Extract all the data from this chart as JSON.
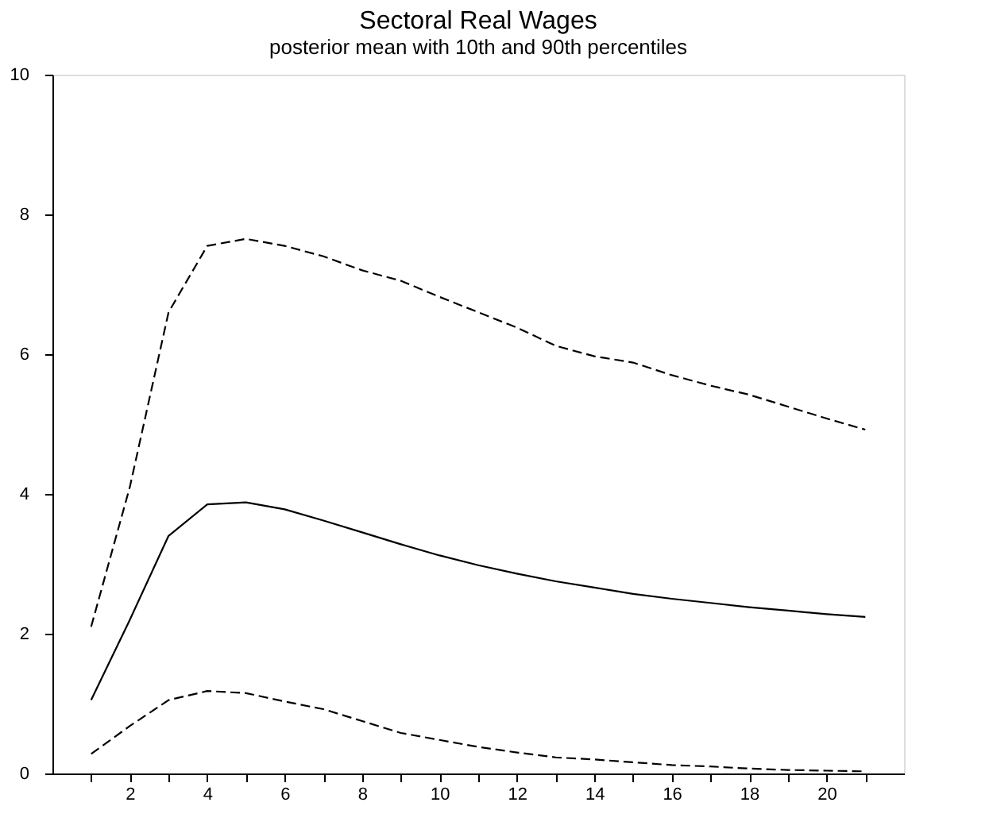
{
  "chart_data": {
    "type": "line",
    "title": "Sectoral Real Wages",
    "subtitle": "posterior mean with 10th and 90th percentiles",
    "x": [
      1,
      2,
      3,
      4,
      5,
      6,
      7,
      8,
      9,
      10,
      11,
      12,
      13,
      14,
      15,
      16,
      17,
      18,
      19,
      20,
      21
    ],
    "series": [
      {
        "color": "#000000",
        "line_style": "dashed",
        "values": [
          2.1,
          4.1,
          6.6,
          7.55,
          7.65,
          7.55,
          7.4,
          7.2,
          7.05,
          6.82,
          6.6,
          6.38,
          6.12,
          5.97,
          5.88,
          5.7,
          5.55,
          5.42,
          5.25,
          5.08,
          4.92
        ]
      },
      {
        "color": "#000000",
        "line_style": "solid",
        "values": [
          1.05,
          2.2,
          3.4,
          3.85,
          3.88,
          3.78,
          3.62,
          3.45,
          3.28,
          3.12,
          2.98,
          2.86,
          2.75,
          2.66,
          2.57,
          2.5,
          2.44,
          2.38,
          2.33,
          2.28,
          2.24
        ]
      },
      {
        "color": "#000000",
        "line_style": "dashed",
        "values": [
          0.28,
          0.68,
          1.05,
          1.18,
          1.15,
          1.03,
          0.92,
          0.75,
          0.58,
          0.48,
          0.38,
          0.3,
          0.23,
          0.2,
          0.16,
          0.12,
          0.1,
          0.07,
          0.05,
          0.04,
          0.03
        ]
      }
    ],
    "xlim": [
      0,
      22
    ],
    "ylim": [
      0,
      10
    ],
    "xticks": [
      {
        "value": 1,
        "label": null
      },
      2,
      {
        "value": 3,
        "label": null
      },
      4,
      {
        "value": 5,
        "label": null
      },
      6,
      {
        "value": 7,
        "label": null
      },
      8,
      {
        "value": 9,
        "label": null
      },
      10,
      {
        "value": 11,
        "label": null
      },
      12,
      {
        "value": 13,
        "label": null
      },
      14,
      {
        "value": 15,
        "label": null
      },
      16,
      {
        "value": 17,
        "label": null
      },
      18,
      {
        "value": 19,
        "label": null
      },
      20,
      {
        "value": 21,
        "label": null
      }
    ],
    "yticks": [
      0,
      2,
      4,
      6,
      8,
      10
    ],
    "grid": false,
    "marker": "none"
  }
}
